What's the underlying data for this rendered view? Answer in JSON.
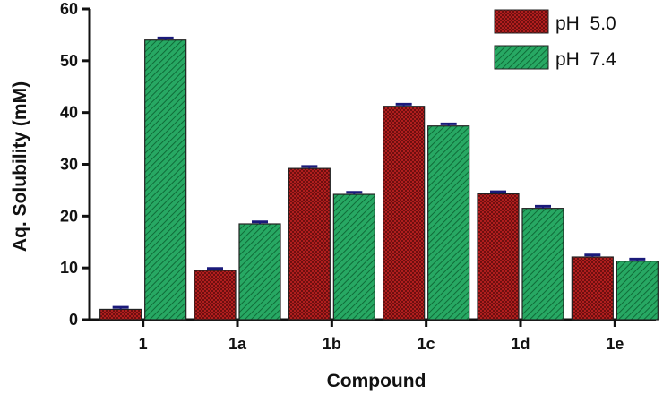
{
  "chart_data": {
    "type": "bar",
    "title": "",
    "xlabel": "Compound",
    "ylabel": "Aq. Solubility (mM)",
    "ylim": [
      0,
      60
    ],
    "yticks": [
      0,
      10,
      20,
      30,
      40,
      50,
      60
    ],
    "categories": [
      "1",
      "1a",
      "1b",
      "1c",
      "1d",
      "1e"
    ],
    "legend_position": "top-right",
    "series": [
      {
        "name": "pH  5.0",
        "values": [
          2.0,
          9.5,
          29.2,
          41.2,
          24.3,
          12.1
        ],
        "error": [
          0.4,
          0.4,
          0.4,
          0.4,
          0.4,
          0.4
        ],
        "color": "#b01e1e",
        "pattern": "checker"
      },
      {
        "name": "pH  7.4",
        "values": [
          54.0,
          18.5,
          24.2,
          37.4,
          21.5,
          11.3
        ],
        "error": [
          0.4,
          0.4,
          0.4,
          0.4,
          0.4,
          0.4
        ],
        "color": "#1f9a55",
        "pattern": "diagonal"
      }
    ],
    "error_bar_color": "#1a1a7a"
  }
}
